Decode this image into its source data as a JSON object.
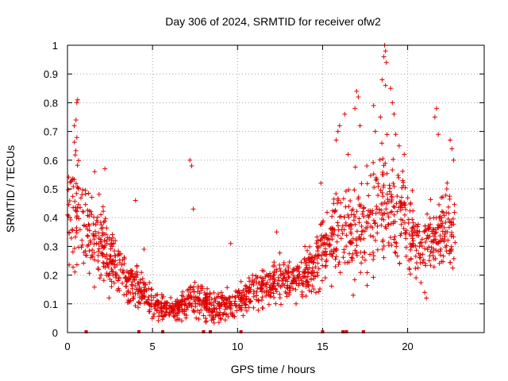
{
  "chart_data": {
    "type": "scatter",
    "title": "Day 306 of 2024, SRMTID for receiver ofw2",
    "xlabel": "GPS time / hours",
    "ylabel": "SRMTID / TECUs",
    "xlim": [
      0,
      24.5
    ],
    "ylim": [
      0,
      1
    ],
    "xticks": [
      0,
      5,
      10,
      15,
      20
    ],
    "yticks": [
      0,
      0.1,
      0.2,
      0.3,
      0.4,
      0.5,
      0.6,
      0.7,
      0.8,
      0.9,
      1
    ],
    "grid": true,
    "marker": "plus",
    "series": [
      {
        "name": "SRMTID",
        "color": "#e00000",
        "envelope": {
          "x": [
            0,
            0.5,
            1,
            2,
            2.5,
            3,
            3.5,
            4,
            4.5,
            5,
            5.5,
            6,
            6.5,
            7,
            7.5,
            8,
            8.5,
            9,
            9.5,
            10,
            10.5,
            11,
            11.5,
            12,
            12.5,
            13,
            13.5,
            14,
            14.5,
            15,
            15.5,
            16,
            16.5,
            17,
            17.5,
            18,
            18.5,
            19,
            19.5,
            20,
            20.5,
            21,
            21.5,
            22,
            22.5,
            22.8
          ],
          "center": [
            0.38,
            0.45,
            0.36,
            0.3,
            0.26,
            0.22,
            0.18,
            0.16,
            0.14,
            0.1,
            0.09,
            0.08,
            0.09,
            0.1,
            0.12,
            0.1,
            0.09,
            0.09,
            0.1,
            0.11,
            0.12,
            0.14,
            0.16,
            0.17,
            0.18,
            0.19,
            0.2,
            0.22,
            0.23,
            0.28,
            0.32,
            0.36,
            0.38,
            0.35,
            0.38,
            0.42,
            0.45,
            0.45,
            0.42,
            0.38,
            0.32,
            0.28,
            0.32,
            0.35,
            0.36,
            0.38
          ],
          "spread": [
            0.15,
            0.18,
            0.14,
            0.12,
            0.09,
            0.08,
            0.06,
            0.06,
            0.05,
            0.04,
            0.04,
            0.03,
            0.04,
            0.05,
            0.06,
            0.05,
            0.05,
            0.05,
            0.05,
            0.05,
            0.05,
            0.05,
            0.06,
            0.06,
            0.06,
            0.06,
            0.07,
            0.07,
            0.08,
            0.1,
            0.12,
            0.14,
            0.14,
            0.13,
            0.14,
            0.16,
            0.17,
            0.17,
            0.16,
            0.14,
            0.1,
            0.1,
            0.11,
            0.12,
            0.12,
            0.12
          ]
        },
        "count": 1600,
        "spikes": [
          {
            "x": 0.6,
            "y": 0.81
          },
          {
            "x": 0.55,
            "y": 0.8
          },
          {
            "x": 0.4,
            "y": 0.72
          },
          {
            "x": 0.5,
            "y": 0.74
          },
          {
            "x": 1.6,
            "y": 0.56
          },
          {
            "x": 2.2,
            "y": 0.57
          },
          {
            "x": 4.0,
            "y": 0.46
          },
          {
            "x": 4.5,
            "y": 0.29
          },
          {
            "x": 7.2,
            "y": 0.6
          },
          {
            "x": 7.3,
            "y": 0.58
          },
          {
            "x": 7.4,
            "y": 0.43
          },
          {
            "x": 9.6,
            "y": 0.31
          },
          {
            "x": 12.3,
            "y": 0.35
          },
          {
            "x": 14.9,
            "y": 0.52
          },
          {
            "x": 15.8,
            "y": 0.67
          },
          {
            "x": 15.9,
            "y": 0.7
          },
          {
            "x": 16.0,
            "y": 0.72
          },
          {
            "x": 16.3,
            "y": 0.76
          },
          {
            "x": 16.5,
            "y": 0.62
          },
          {
            "x": 16.8,
            "y": 0.13
          },
          {
            "x": 16.9,
            "y": 0.78
          },
          {
            "x": 17.0,
            "y": 0.84
          },
          {
            "x": 17.1,
            "y": 0.82
          },
          {
            "x": 17.2,
            "y": 0.72
          },
          {
            "x": 17.6,
            "y": 0.58
          },
          {
            "x": 18.0,
            "y": 0.79
          },
          {
            "x": 18.1,
            "y": 0.7
          },
          {
            "x": 18.4,
            "y": 0.75
          },
          {
            "x": 18.5,
            "y": 0.88
          },
          {
            "x": 18.6,
            "y": 0.96
          },
          {
            "x": 18.65,
            "y": 1.0
          },
          {
            "x": 18.7,
            "y": 0.98
          },
          {
            "x": 18.75,
            "y": 0.94
          },
          {
            "x": 18.7,
            "y": 0.86
          },
          {
            "x": 19.0,
            "y": 0.85
          },
          {
            "x": 19.1,
            "y": 0.8
          },
          {
            "x": 19.2,
            "y": 0.76
          },
          {
            "x": 19.3,
            "y": 0.69
          },
          {
            "x": 19.5,
            "y": 0.65
          },
          {
            "x": 19.8,
            "y": 0.62
          },
          {
            "x": 20.1,
            "y": 0.22
          },
          {
            "x": 21.0,
            "y": 0.14
          },
          {
            "x": 21.1,
            "y": 0.12
          },
          {
            "x": 21.6,
            "y": 0.75
          },
          {
            "x": 21.7,
            "y": 0.78
          },
          {
            "x": 21.8,
            "y": 0.69
          },
          {
            "x": 22.3,
            "y": 0.5
          },
          {
            "x": 22.5,
            "y": 0.67
          },
          {
            "x": 22.6,
            "y": 0.64
          },
          {
            "x": 22.7,
            "y": 0.6
          }
        ],
        "gap_marks_at_zero": [
          1.1,
          4.2,
          5.6,
          8.0,
          8.4,
          10.2,
          15.0,
          16.2,
          16.4,
          17.4
        ]
      }
    ]
  }
}
